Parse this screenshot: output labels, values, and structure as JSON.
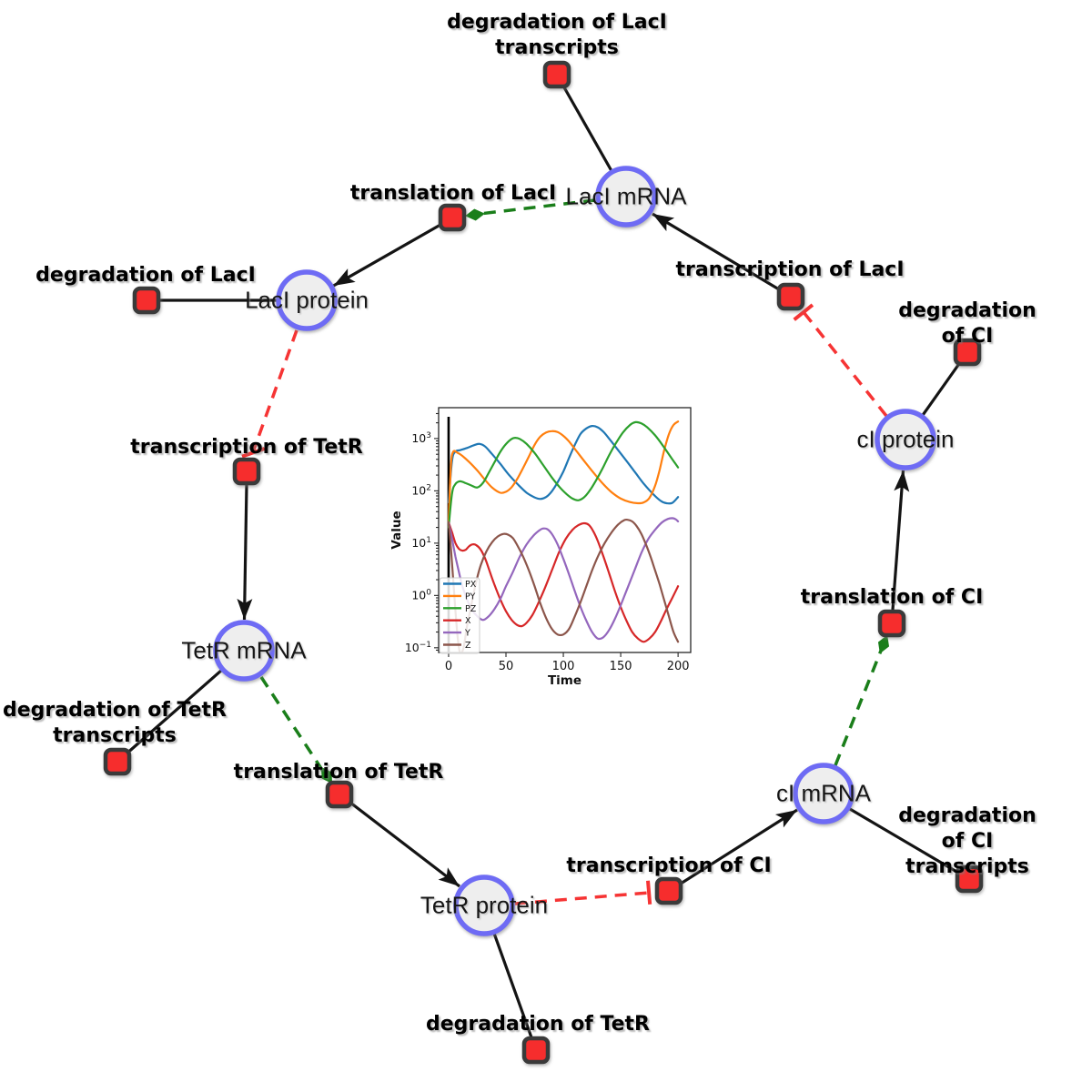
{
  "diagram": {
    "species": [
      {
        "id": "laci_mrna",
        "label": "LacI mRNA"
      },
      {
        "id": "laci_protein",
        "label": "LacI protein"
      },
      {
        "id": "tetr_mrna",
        "label": "TetR mRNA"
      },
      {
        "id": "tetr_protein",
        "label": "TetR protein"
      },
      {
        "id": "ci_mrna",
        "label": "cI mRNA"
      },
      {
        "id": "ci_protein",
        "label": "cI protein"
      }
    ],
    "reactions": [
      {
        "id": "deg_laci_tx",
        "label": "degradation of LacI\ntranscripts"
      },
      {
        "id": "transl_laci",
        "label": "translation of LacI"
      },
      {
        "id": "tr_laci",
        "label": "transcription of LacI"
      },
      {
        "id": "deg_ci",
        "label": "degradation of CI"
      },
      {
        "id": "deg_laci",
        "label": "degradation of LacI"
      },
      {
        "id": "tr_tetr",
        "label": "transcription of TetR"
      },
      {
        "id": "deg_tetr_tx",
        "label": "degradation of TetR\ntranscripts"
      },
      {
        "id": "transl_tetr",
        "label": "translation of TetR"
      },
      {
        "id": "deg_tetr",
        "label": "degradation of TetR"
      },
      {
        "id": "tr_ci",
        "label": "transcription of CI"
      },
      {
        "id": "deg_ci_tx",
        "label": "degradation of CI\ntranscripts"
      },
      {
        "id": "transl_ci",
        "label": "translation of CI"
      }
    ],
    "colors": {
      "species_fill": "#eeeeee",
      "species_stroke": "#6e6bf4",
      "reaction_fill": "#f62d2d",
      "reaction_stroke": "#3a3a3a",
      "edge": "#141414",
      "activation": "#1a7e1a",
      "inhibition": "#f63434"
    }
  },
  "chart_data": {
    "type": "line",
    "title": "",
    "xlabel": "Time",
    "ylabel": "Value",
    "x_ticks": [
      0,
      50,
      100,
      150,
      200
    ],
    "y_scale": "log",
    "y_ticks": [
      "10^-1",
      "10^0",
      "10^1",
      "10^2",
      "10^3"
    ],
    "xlim": [
      -8.7,
      211
    ],
    "ylim_log10": [
      -1.09,
      3.59
    ],
    "grid": false,
    "legend_position": "lower left",
    "legend_entries": [
      "PX",
      "PY",
      "PZ",
      "X",
      "Y",
      "Z"
    ],
    "annotations": {
      "vline": {
        "x": 0,
        "y_from": 0.076,
        "y_to": 2600
      }
    },
    "series": [
      {
        "name": "PX",
        "color": "#1f77b4",
        "points": [
          [
            0,
            60
          ],
          [
            3,
            380
          ],
          [
            6,
            560
          ],
          [
            10,
            600
          ],
          [
            16,
            660
          ],
          [
            22,
            745
          ],
          [
            27,
            790
          ],
          [
            32,
            700
          ],
          [
            38,
            500
          ],
          [
            45,
            330
          ],
          [
            52,
            210
          ],
          [
            60,
            135
          ],
          [
            68,
            92
          ],
          [
            75,
            75
          ],
          [
            80,
            70
          ],
          [
            85,
            76
          ],
          [
            90,
            98
          ],
          [
            95,
            145
          ],
          [
            100,
            235
          ],
          [
            105,
            430
          ],
          [
            110,
            760
          ],
          [
            115,
            1230
          ],
          [
            120,
            1560
          ],
          [
            125,
            1740
          ],
          [
            130,
            1640
          ],
          [
            135,
            1340
          ],
          [
            140,
            990
          ],
          [
            147,
            630
          ],
          [
            155,
            375
          ],
          [
            162,
            235
          ],
          [
            170,
            138
          ],
          [
            178,
            88
          ],
          [
            185,
            64
          ],
          [
            190,
            58
          ],
          [
            195,
            59
          ],
          [
            200,
            76
          ]
        ]
      },
      {
        "name": "PY",
        "color": "#ff7f0e",
        "points": [
          [
            0,
            25
          ],
          [
            2,
            300
          ],
          [
            4,
            560
          ],
          [
            8,
            530
          ],
          [
            12,
            465
          ],
          [
            18,
            355
          ],
          [
            25,
            245
          ],
          [
            32,
            160
          ],
          [
            38,
            115
          ],
          [
            45,
            92
          ],
          [
            50,
            96
          ],
          [
            55,
            118
          ],
          [
            60,
            172
          ],
          [
            65,
            275
          ],
          [
            70,
            455
          ],
          [
            75,
            760
          ],
          [
            80,
            1090
          ],
          [
            85,
            1310
          ],
          [
            90,
            1385
          ],
          [
            95,
            1330
          ],
          [
            100,
            1125
          ],
          [
            105,
            875
          ],
          [
            112,
            555
          ],
          [
            120,
            330
          ],
          [
            128,
            200
          ],
          [
            135,
            133
          ],
          [
            142,
            94
          ],
          [
            150,
            71
          ],
          [
            158,
            61
          ],
          [
            165,
            58
          ],
          [
            170,
            60
          ],
          [
            175,
            73
          ],
          [
            180,
            125
          ],
          [
            184,
            255
          ],
          [
            188,
            610
          ],
          [
            192,
            1210
          ],
          [
            196,
            1820
          ],
          [
            200,
            2120
          ]
        ]
      },
      {
        "name": "PZ",
        "color": "#2ca02c",
        "points": [
          [
            0,
            20
          ],
          [
            3,
            90
          ],
          [
            6,
            135
          ],
          [
            10,
            152
          ],
          [
            15,
            140
          ],
          [
            20,
            126
          ],
          [
            25,
            116
          ],
          [
            30,
            142
          ],
          [
            35,
            222
          ],
          [
            40,
            352
          ],
          [
            45,
            555
          ],
          [
            50,
            785
          ],
          [
            55,
            985
          ],
          [
            58,
            1035
          ],
          [
            62,
            985
          ],
          [
            68,
            790
          ],
          [
            75,
            530
          ],
          [
            82,
            320
          ],
          [
            90,
            180
          ],
          [
            97,
            116
          ],
          [
            103,
            86
          ],
          [
            108,
            71
          ],
          [
            113,
            66
          ],
          [
            118,
            75
          ],
          [
            123,
            101
          ],
          [
            128,
            152
          ],
          [
            134,
            262
          ],
          [
            140,
            485
          ],
          [
            146,
            825
          ],
          [
            152,
            1310
          ],
          [
            158,
            1810
          ],
          [
            163,
            2060
          ],
          [
            168,
            1950
          ],
          [
            173,
            1650
          ],
          [
            180,
            1150
          ],
          [
            187,
            720
          ],
          [
            194,
            430
          ],
          [
            200,
            280
          ]
        ]
      },
      {
        "name": "X",
        "color": "#d62728",
        "points": [
          [
            0,
            25
          ],
          [
            3,
            16
          ],
          [
            6,
            10
          ],
          [
            9,
            7.8
          ],
          [
            12,
            7.2
          ],
          [
            15,
            7.5
          ],
          [
            18,
            8.8
          ],
          [
            21,
            9.5
          ],
          [
            24,
            9.2
          ],
          [
            28,
            7.5
          ],
          [
            32,
            5
          ],
          [
            36,
            2.8
          ],
          [
            40,
            1.6
          ],
          [
            45,
            0.85
          ],
          [
            50,
            0.5
          ],
          [
            55,
            0.34
          ],
          [
            60,
            0.27
          ],
          [
            64,
            0.26
          ],
          [
            68,
            0.3
          ],
          [
            73,
            0.42
          ],
          [
            78,
            0.7
          ],
          [
            84,
            1.4
          ],
          [
            90,
            3
          ],
          [
            96,
            6.5
          ],
          [
            102,
            12
          ],
          [
            108,
            18
          ],
          [
            113,
            22
          ],
          [
            118,
            24
          ],
          [
            122,
            22.5
          ],
          [
            126,
            17
          ],
          [
            130,
            11
          ],
          [
            135,
            5.5
          ],
          [
            140,
            2.6
          ],
          [
            145,
            1.2
          ],
          [
            150,
            0.6
          ],
          [
            155,
            0.33
          ],
          [
            160,
            0.2
          ],
          [
            165,
            0.15
          ],
          [
            170,
            0.13
          ],
          [
            175,
            0.15
          ],
          [
            180,
            0.2
          ],
          [
            185,
            0.32
          ],
          [
            190,
            0.55
          ],
          [
            195,
            0.9
          ],
          [
            200,
            1.5
          ]
        ]
      },
      {
        "name": "Y",
        "color": "#9467bd",
        "points": [
          [
            0,
            25
          ],
          [
            3,
            12
          ],
          [
            6,
            5.5
          ],
          [
            9,
            2.8
          ],
          [
            12,
            1.5
          ],
          [
            16,
            0.85
          ],
          [
            20,
            0.55
          ],
          [
            25,
            0.4
          ],
          [
            30,
            0.34
          ],
          [
            35,
            0.4
          ],
          [
            40,
            0.55
          ],
          [
            45,
            0.85
          ],
          [
            50,
            1.5
          ],
          [
            56,
            2.8
          ],
          [
            62,
            5.5
          ],
          [
            68,
            9.5
          ],
          [
            74,
            14
          ],
          [
            79,
            17.5
          ],
          [
            82,
            19
          ],
          [
            86,
            18.5
          ],
          [
            90,
            15
          ],
          [
            95,
            9.5
          ],
          [
            100,
            5
          ],
          [
            105,
            2.5
          ],
          [
            110,
            1.2
          ],
          [
            115,
            0.6
          ],
          [
            120,
            0.33
          ],
          [
            125,
            0.2
          ],
          [
            130,
            0.15
          ],
          [
            135,
            0.16
          ],
          [
            140,
            0.22
          ],
          [
            145,
            0.36
          ],
          [
            150,
            0.65
          ],
          [
            156,
            1.4
          ],
          [
            162,
            3
          ],
          [
            168,
            6.5
          ],
          [
            174,
            12
          ],
          [
            180,
            18
          ],
          [
            186,
            25
          ],
          [
            191,
            29
          ],
          [
            195,
            30
          ],
          [
            198,
            28.5
          ],
          [
            200,
            26
          ]
        ]
      },
      {
        "name": "Z",
        "color": "#8c564b",
        "points": [
          [
            0,
            25
          ],
          [
            2,
            8
          ],
          [
            4,
            2
          ],
          [
            6,
            0.5
          ],
          [
            8,
            0.15
          ],
          [
            10,
            0.08
          ],
          [
            13,
            0.1
          ],
          [
            16,
            0.25
          ],
          [
            20,
            0.7
          ],
          [
            24,
            1.8
          ],
          [
            28,
            3.8
          ],
          [
            33,
            7
          ],
          [
            38,
            10.5
          ],
          [
            43,
            13.5
          ],
          [
            48,
            15
          ],
          [
            52,
            14.5
          ],
          [
            56,
            12.5
          ],
          [
            60,
            9
          ],
          [
            65,
            5.5
          ],
          [
            70,
            3
          ],
          [
            75,
            1.5
          ],
          [
            80,
            0.7
          ],
          [
            85,
            0.37
          ],
          [
            90,
            0.23
          ],
          [
            95,
            0.18
          ],
          [
            100,
            0.18
          ],
          [
            105,
            0.23
          ],
          [
            110,
            0.4
          ],
          [
            115,
            0.75
          ],
          [
            120,
            1.5
          ],
          [
            125,
            3
          ],
          [
            130,
            5.5
          ],
          [
            136,
            10
          ],
          [
            142,
            16
          ],
          [
            148,
            23
          ],
          [
            153,
            27.5
          ],
          [
            156,
            28
          ],
          [
            160,
            26
          ],
          [
            164,
            21
          ],
          [
            168,
            15
          ],
          [
            172,
            9.5
          ],
          [
            176,
            5.5
          ],
          [
            180,
            3
          ],
          [
            184,
            1.6
          ],
          [
            188,
            0.8
          ],
          [
            192,
            0.4
          ],
          [
            196,
            0.2
          ],
          [
            200,
            0.13
          ]
        ]
      }
    ]
  }
}
